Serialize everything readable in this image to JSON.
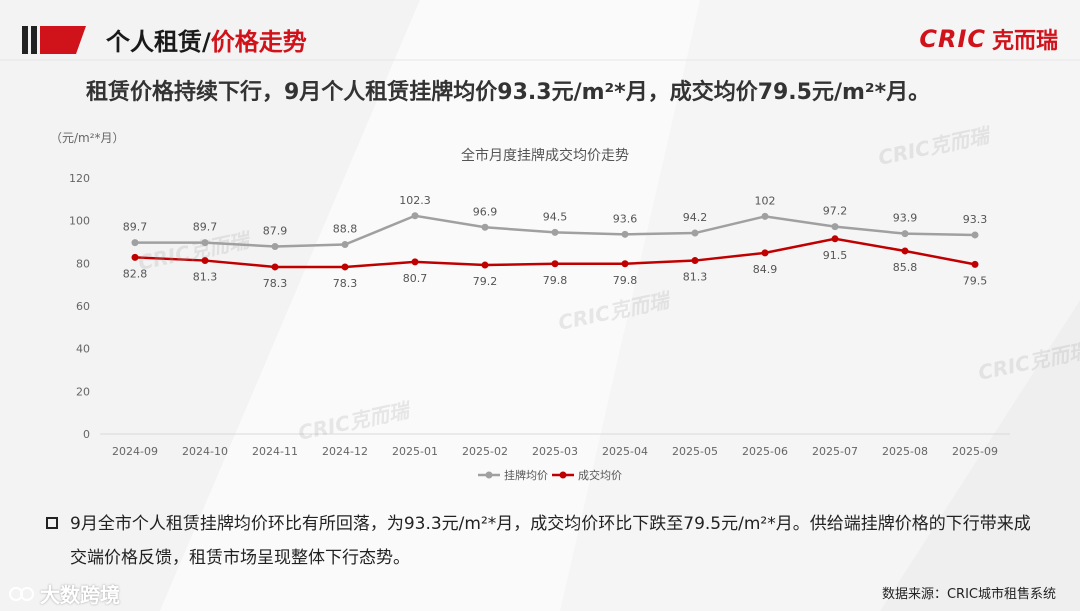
{
  "header": {
    "title_prefix": "个人租赁/",
    "title_suffix": "价格走势",
    "brand_latin": "CRIC",
    "brand_cn": "克而瑞"
  },
  "headline": "租赁价格持续下行，9月个人租赁挂牌均价93.3元/m²*月，成交均价79.5元/m²*月。",
  "chart_data": {
    "type": "line",
    "title": "全市月度挂牌成交均价走势",
    "unit_label": "（元/m²*月）",
    "x": [
      "2024-09",
      "2024-10",
      "2024-11",
      "2024-12",
      "2025-01",
      "2025-02",
      "2025-03",
      "2025-04",
      "2025-05",
      "2025-06",
      "2025-07",
      "2025-08",
      "2025-09"
    ],
    "ylim": [
      0,
      120
    ],
    "yticks": [
      "0",
      "20",
      "40",
      "60",
      "80",
      "100",
      "120"
    ],
    "grid": false,
    "legend_position": "bottom",
    "series": [
      {
        "name": "挂牌均价",
        "color": "#a0a0a0",
        "values": [
          89.7,
          89.7,
          87.9,
          88.8,
          102.3,
          96.9,
          94.5,
          93.6,
          94.2,
          102,
          97.2,
          93.9,
          93.3
        ],
        "labels": [
          "89.7",
          "89.7",
          "87.9",
          "88.8",
          "102.3",
          "96.9",
          "94.5",
          "93.6",
          "94.2",
          "102",
          "97.2",
          "93.9",
          "93.3"
        ]
      },
      {
        "name": "成交均价",
        "color": "#c00000",
        "values": [
          82.8,
          81.3,
          78.3,
          78.3,
          80.7,
          79.2,
          79.8,
          79.8,
          81.3,
          84.9,
          91.5,
          85.8,
          79.5
        ],
        "labels": [
          "82.8",
          "81.3",
          "78.3",
          "78.3",
          "80.7",
          "79.2",
          "79.8",
          "79.8",
          "81.3",
          "84.9",
          "91.5",
          "85.8",
          "79.5"
        ]
      }
    ]
  },
  "bullet_text": "9月全市个人租赁挂牌均价环比有所回落，为93.3元/m²*月，成交均价环比下跌至79.5元/m²*月。供给端挂牌价格的下行带来成交端价格反馈，租赁市场呈现整体下行态势。",
  "source": "数据来源：CRIC城市租售系统",
  "watermark": {
    "chart_mark": "CRIC克而瑞",
    "footer_mark": "大数跨境"
  },
  "colors": {
    "accent_red": "#d0121b",
    "listing_gray": "#a0a0a0",
    "deal_red": "#c00000"
  }
}
